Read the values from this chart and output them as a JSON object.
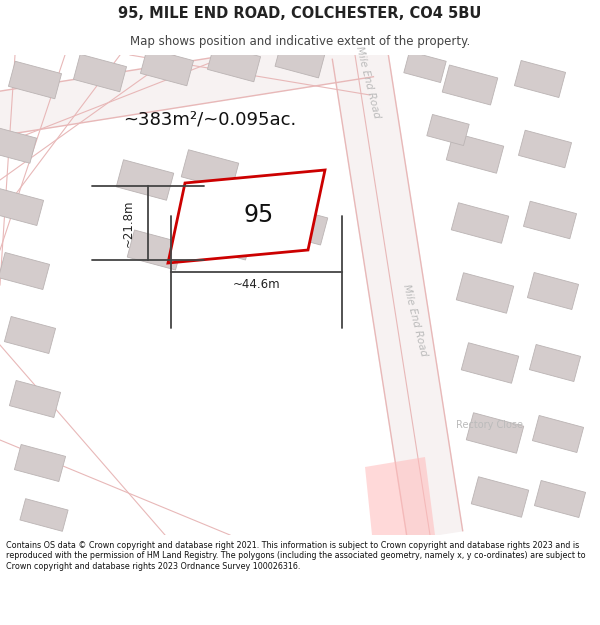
{
  "title": "95, MILE END ROAD, COLCHESTER, CO4 5BU",
  "subtitle": "Map shows position and indicative extent of the property.",
  "footer": "Contains OS data © Crown copyright and database right 2021. This information is subject to Crown copyright and database rights 2023 and is reproduced with the permission of HM Land Registry. The polygons (including the associated geometry, namely x, y co-ordinates) are subject to Crown copyright and database rights 2023 Ordnance Survey 100026316.",
  "bg_color": "#f7f2f2",
  "road_color": "#e8b8b8",
  "building_color": "#d4cccc",
  "building_edge": "#bbb4b4",
  "plot_outline_color": "#cc0000",
  "plot_label": "95",
  "area_label": "~383m²/~0.095ac.",
  "width_label": "~44.6m",
  "height_label": "~21.8m",
  "road_label_top": "Mile End Road",
  "road_label_right": "Mile End Road",
  "road_label_small": "Rectory Close",
  "dim_line_color": "#444444",
  "text_color": "#222222",
  "road_text_color": "#bbbbbb"
}
